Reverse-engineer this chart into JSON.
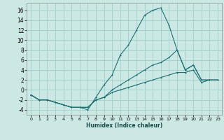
{
  "xlabel": "Humidex (Indice chaleur)",
  "background_color": "#cce8e5",
  "grid_color": "#9fcfcc",
  "line_color": "#1e7070",
  "xlim": [
    -0.5,
    23.5
  ],
  "ylim": [
    -5,
    17.5
  ],
  "xticks": [
    0,
    1,
    2,
    3,
    4,
    5,
    6,
    7,
    8,
    9,
    10,
    11,
    12,
    13,
    14,
    15,
    16,
    17,
    18,
    19,
    20,
    21,
    22,
    23
  ],
  "yticks": [
    -4,
    -2,
    0,
    2,
    4,
    6,
    8,
    10,
    12,
    14,
    16
  ],
  "curve1_x": [
    0,
    1,
    2,
    3,
    4,
    5,
    6,
    7,
    8,
    9,
    10,
    11,
    12,
    13,
    14,
    15,
    16,
    17,
    18,
    19,
    20,
    21,
    22,
    23
  ],
  "curve1_y": [
    -1,
    -2,
    -2,
    -2.5,
    -3,
    -3.5,
    -3.5,
    -4,
    -1.5,
    1,
    3,
    7,
    9,
    12,
    15,
    16,
    16.5,
    13,
    8,
    4,
    5,
    2,
    2,
    2
  ],
  "curve2_x": [
    0,
    1,
    2,
    3,
    4,
    5,
    6,
    7,
    8,
    9,
    10,
    11,
    12,
    13,
    14,
    15,
    16,
    17,
    18,
    19,
    20,
    21,
    22,
    23
  ],
  "curve2_y": [
    -1,
    -2,
    -2,
    -2.5,
    -3,
    -3.5,
    -3.5,
    -3.5,
    -2,
    -1.5,
    0,
    1,
    2,
    3,
    4,
    5,
    5.5,
    6.5,
    8,
    4,
    5,
    2,
    2,
    2
  ],
  "curve3_x": [
    0,
    1,
    2,
    3,
    4,
    5,
    6,
    7,
    8,
    9,
    10,
    11,
    12,
    13,
    14,
    15,
    16,
    17,
    18,
    19,
    20,
    21,
    22,
    23
  ],
  "curve3_y": [
    -1,
    -2,
    -2,
    -2.5,
    -3,
    -3.5,
    -3.5,
    -3.5,
    -2,
    -1.5,
    -0.5,
    0,
    0.5,
    1,
    1.5,
    2,
    2.5,
    3,
    3.5,
    3.5,
    4,
    1.5,
    2,
    2
  ]
}
